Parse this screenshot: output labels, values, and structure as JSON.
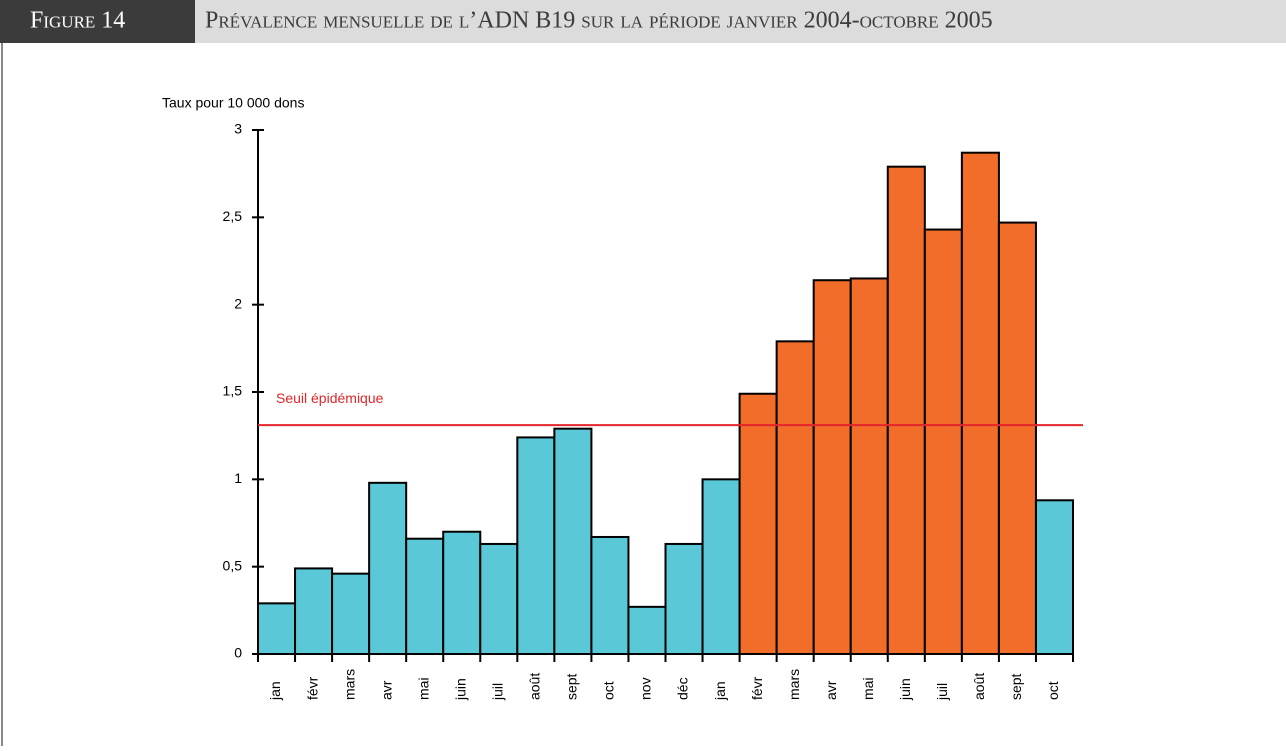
{
  "header": {
    "label": "Figure 14",
    "title": "Prévalence mensuelle de l’ADN B19 sur la période janvier 2004-octobre 2005"
  },
  "chart_data": {
    "type": "bar",
    "ylabel": "Taux pour 10 000 dons",
    "categories": [
      "jan",
      "févr",
      "mars",
      "avr",
      "mai",
      "juin",
      "juil",
      "août",
      "sept",
      "oct",
      "nov",
      "déc",
      "jan",
      "févr",
      "mars",
      "avr",
      "mai",
      "juin",
      "juil",
      "août",
      "sept",
      "oct"
    ],
    "values": [
      0.29,
      0.49,
      0.46,
      0.98,
      0.66,
      0.7,
      0.63,
      1.24,
      1.29,
      0.67,
      0.27,
      0.63,
      1.0,
      1.49,
      1.79,
      2.14,
      2.15,
      2.79,
      2.43,
      2.87,
      2.47,
      0.88
    ],
    "colors": [
      "#5bc8d8",
      "#5bc8d8",
      "#5bc8d8",
      "#5bc8d8",
      "#5bc8d8",
      "#5bc8d8",
      "#5bc8d8",
      "#5bc8d8",
      "#5bc8d8",
      "#5bc8d8",
      "#5bc8d8",
      "#5bc8d8",
      "#5bc8d8",
      "#f26c2a",
      "#f26c2a",
      "#f26c2a",
      "#f26c2a",
      "#f26c2a",
      "#f26c2a",
      "#f26c2a",
      "#f26c2a",
      "#5bc8d8"
    ],
    "ylim": [
      0,
      3
    ],
    "yticks": [
      0,
      {
        "value": 0.5,
        "label": "0,5"
      },
      1,
      {
        "value": 1.5,
        "label": "1,5"
      },
      2,
      {
        "value": 2.5,
        "label": "2,5"
      },
      3
    ],
    "threshold": {
      "value": 1.31,
      "label": "Seuil épidémique",
      "color": "#e3262b"
    }
  }
}
